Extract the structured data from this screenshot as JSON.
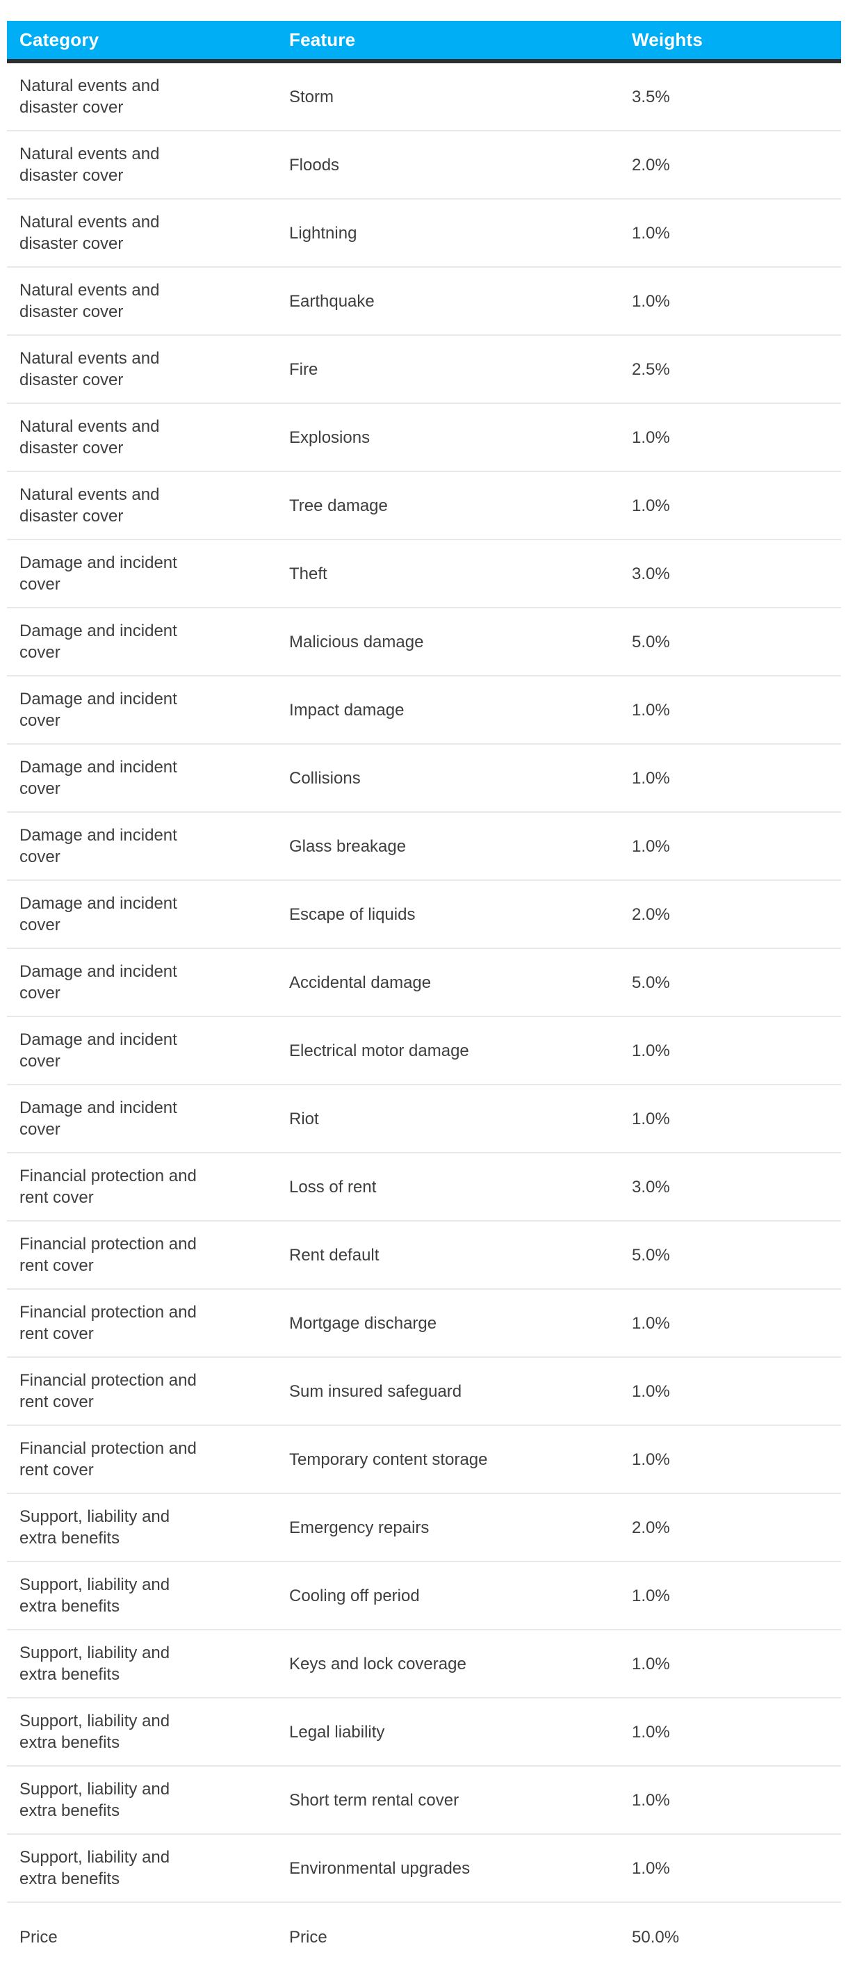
{
  "colors": {
    "header_bg": "#00AEF5",
    "header_text": "#FFFFFF",
    "header_border": "#2E2E2E",
    "row_text": "#3E3E3E",
    "divider": "#E9E9E9",
    "page_bg": "#FFFFFF"
  },
  "chart_data": {
    "type": "table",
    "columns": [
      "Category",
      "Feature",
      "Weights"
    ],
    "rows": [
      {
        "category": "Natural events and\ndisaster cover",
        "feature": "Storm",
        "weight": "3.5%"
      },
      {
        "category": "Natural events and\ndisaster cover",
        "feature": "Floods",
        "weight": "2.0%"
      },
      {
        "category": "Natural events and\ndisaster cover",
        "feature": "Lightning",
        "weight": "1.0%"
      },
      {
        "category": "Natural events and\ndisaster cover",
        "feature": "Earthquake",
        "weight": "1.0%"
      },
      {
        "category": "Natural events and\ndisaster cover",
        "feature": "Fire",
        "weight": "2.5%"
      },
      {
        "category": "Natural events and\ndisaster cover",
        "feature": "Explosions",
        "weight": "1.0%"
      },
      {
        "category": "Natural events and\ndisaster cover",
        "feature": "Tree damage",
        "weight": "1.0%"
      },
      {
        "category": "Damage and incident\ncover",
        "feature": "Theft",
        "weight": "3.0%"
      },
      {
        "category": "Damage and incident\ncover",
        "feature": "Malicious damage",
        "weight": "5.0%"
      },
      {
        "category": "Damage and incident\ncover",
        "feature": "Impact damage",
        "weight": "1.0%"
      },
      {
        "category": "Damage and incident\ncover",
        "feature": "Collisions",
        "weight": "1.0%"
      },
      {
        "category": "Damage and incident\ncover",
        "feature": "Glass breakage",
        "weight": "1.0%"
      },
      {
        "category": "Damage and incident\ncover",
        "feature": "Escape of liquids",
        "weight": "2.0%"
      },
      {
        "category": "Damage and incident\ncover",
        "feature": "Accidental damage",
        "weight": "5.0%"
      },
      {
        "category": "Damage and incident\ncover",
        "feature": "Electrical motor damage",
        "weight": "1.0%"
      },
      {
        "category": "Damage and incident\ncover",
        "feature": "Riot",
        "weight": "1.0%"
      },
      {
        "category": "Financial protection and\nrent cover",
        "feature": "Loss of rent",
        "weight": "3.0%"
      },
      {
        "category": "Financial protection and\nrent cover",
        "feature": "Rent default",
        "weight": "5.0%"
      },
      {
        "category": "Financial protection and\nrent cover",
        "feature": "Mortgage discharge",
        "weight": "1.0%"
      },
      {
        "category": "Financial protection and\nrent cover",
        "feature": "Sum insured safeguard",
        "weight": "1.0%"
      },
      {
        "category": "Financial protection and\nrent cover",
        "feature": "Temporary content storage",
        "weight": "1.0%"
      },
      {
        "category": "Support, liability and\nextra benefits",
        "feature": "Emergency repairs",
        "weight": "2.0%"
      },
      {
        "category": "Support, liability and\nextra benefits",
        "feature": "Cooling off period",
        "weight": "1.0%"
      },
      {
        "category": "Support, liability and\nextra benefits",
        "feature": "Keys and lock coverage",
        "weight": "1.0%"
      },
      {
        "category": "Support, liability and\nextra benefits",
        "feature": "Legal liability",
        "weight": "1.0%"
      },
      {
        "category": "Support, liability and\nextra benefits",
        "feature": "Short term rental cover",
        "weight": "1.0%"
      },
      {
        "category": "Support, liability and\nextra benefits",
        "feature": "Environmental upgrades",
        "weight": "1.0%"
      },
      {
        "category": "Price",
        "feature": "Price",
        "weight": "50.0%"
      }
    ]
  }
}
